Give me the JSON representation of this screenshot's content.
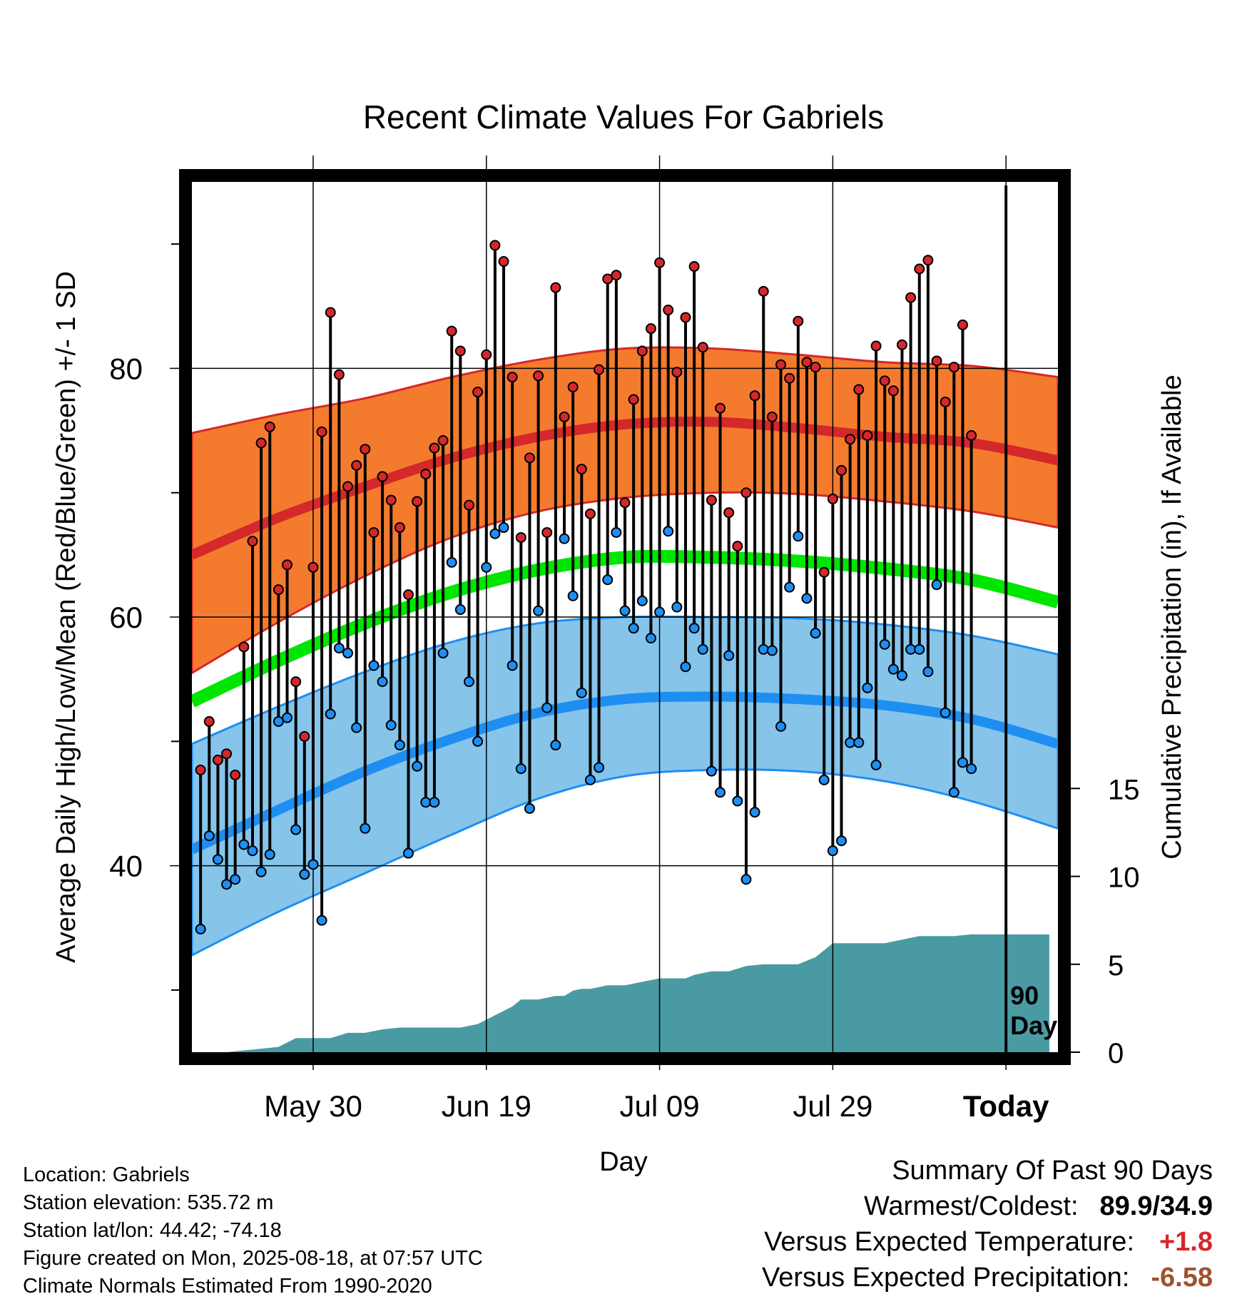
{
  "chart_data": {
    "type": "line",
    "title": "Recent Climate Values For Gabriels",
    "xlabel": "Day",
    "ylabel_left": "Average Daily High/Low/Mean (Red/Blue/Green) +/- 1 SD",
    "ylabel_right": "Cumulative Precipitation (in), If Available",
    "x_tick_labels": [
      "May 30",
      "Jun 19",
      "Jul 09",
      "Jul 29",
      "Today"
    ],
    "y_left_ticks": [
      40,
      60,
      80
    ],
    "y_right_ticks": [
      0,
      5,
      10,
      15
    ],
    "ylim_left": [
      25,
      95
    ],
    "ylim_right": [
      0,
      49.5
    ],
    "x_range_days": [
      -90,
      10
    ],
    "today_marker_label": [
      "90",
      "Days"
    ],
    "grid": true,
    "colors": {
      "high_band": "#f47b2e",
      "high_mean": "#d4282a",
      "low_band": "#86c4ea",
      "low_mean": "#1e8ef2",
      "mean": "#00e600",
      "precip": "#4a9aa3",
      "high_point": "#d4282a",
      "low_point": "#1e8ef2"
    },
    "normals": {
      "x": [
        -90,
        -80,
        -70,
        -60,
        -50,
        -40,
        -30,
        -20,
        -10,
        0,
        10
      ],
      "high_mean": [
        65.0,
        68.0,
        70.5,
        72.8,
        74.5,
        75.5,
        75.7,
        75.2,
        74.5,
        74.0,
        72.6
      ],
      "high_sd_upper": [
        74.8,
        76.3,
        77.6,
        79.3,
        80.7,
        81.6,
        81.6,
        81.1,
        80.5,
        80.2,
        79.3
      ],
      "high_sd_lower": [
        55.5,
        59.6,
        63.3,
        66.4,
        68.5,
        69.6,
        70.0,
        69.9,
        69.3,
        68.5,
        67.2
      ],
      "mean": [
        53.2,
        56.5,
        59.5,
        62.0,
        63.8,
        64.8,
        64.8,
        64.5,
        63.9,
        63.0,
        61.2
      ],
      "low_mean": [
        41.3,
        44.5,
        47.6,
        50.2,
        52.3,
        53.4,
        53.6,
        53.4,
        52.9,
        51.8,
        49.8
      ],
      "low_sd_upper": [
        49.8,
        52.8,
        55.6,
        58.0,
        59.5,
        60.0,
        60.0,
        59.9,
        59.4,
        58.5,
        57.0
      ],
      "low_sd_lower": [
        32.8,
        36.3,
        39.4,
        42.5,
        45.4,
        47.2,
        47.7,
        47.6,
        46.8,
        45.2,
        43.0
      ]
    },
    "daily_highs": [
      47.7,
      51.6,
      48.5,
      49.0,
      47.3,
      57.6,
      66.1,
      74.0,
      75.3,
      62.2,
      64.2,
      54.8,
      50.4,
      64.0,
      74.9,
      84.5,
      79.5,
      70.5,
      72.2,
      73.5,
      66.8,
      71.3,
      69.4,
      67.2,
      61.8,
      69.3,
      71.5,
      73.6,
      74.2,
      83.0,
      81.4,
      69.0,
      78.1,
      81.1,
      89.9,
      88.6,
      79.3,
      66.4,
      72.8,
      79.4,
      66.8,
      86.5,
      76.1,
      78.5,
      71.9,
      68.3,
      79.9,
      87.2,
      87.5,
      69.2,
      77.5,
      81.4,
      83.2,
      88.5,
      84.7,
      79.7,
      84.1,
      88.2,
      81.7,
      69.4,
      76.8,
      68.4,
      65.7,
      70.0,
      77.8,
      86.2,
      76.1,
      80.3,
      79.2,
      83.8,
      80.5,
      80.1,
      63.6,
      69.5,
      71.8,
      74.3,
      78.3,
      74.6,
      81.8,
      79.0,
      78.2,
      81.9,
      85.7,
      88.0,
      88.7,
      80.6,
      77.3,
      80.1,
      83.5,
      74.6
    ],
    "daily_lows": [
      34.9,
      42.4,
      40.5,
      38.5,
      38.9,
      41.7,
      41.2,
      39.5,
      40.9,
      51.6,
      51.9,
      42.9,
      39.3,
      40.1,
      35.6,
      52.2,
      57.5,
      57.1,
      51.1,
      43.0,
      56.1,
      54.8,
      51.3,
      49.7,
      41.0,
      48.0,
      45.1,
      45.1,
      57.1,
      64.4,
      60.6,
      54.8,
      50.0,
      64.0,
      66.7,
      67.2,
      56.1,
      47.8,
      44.6,
      60.5,
      52.7,
      49.7,
      66.3,
      61.7,
      53.9,
      46.9,
      47.9,
      63.0,
      66.8,
      60.5,
      59.1,
      61.3,
      58.3,
      60.4,
      66.9,
      60.8,
      56.0,
      59.1,
      57.4,
      47.6,
      45.9,
      56.9,
      45.2,
      38.9,
      44.3,
      57.4,
      57.3,
      51.2,
      62.4,
      66.5,
      61.5,
      58.7,
      46.9,
      41.2,
      42.0,
      49.9,
      49.9,
      54.3,
      48.1,
      57.8,
      55.8,
      55.3,
      57.4,
      57.4,
      55.6,
      62.6,
      52.3,
      45.9,
      48.3,
      47.8
    ],
    "precip_cumulative": {
      "x": [
        -90,
        -86,
        -84,
        -80,
        -78,
        -76,
        -74,
        -72,
        -70,
        -68,
        -66,
        -64,
        -62,
        -59,
        -57,
        -55,
        -53,
        -52,
        -51,
        -50,
        -48,
        -47,
        -46,
        -45,
        -44,
        -42,
        -40,
        -38,
        -36,
        -34,
        -33,
        -32,
        -30,
        -28,
        -26,
        -24,
        -23,
        -22,
        -20,
        -18,
        -16,
        -15,
        -14,
        -12,
        -10,
        -8,
        -6,
        -4,
        -3,
        -2,
        0,
        2,
        4,
        6,
        9
      ],
      "y": [
        0.0,
        0.0,
        0.1,
        0.3,
        0.8,
        0.8,
        0.8,
        1.1,
        1.1,
        1.3,
        1.4,
        1.4,
        1.4,
        1.4,
        1.6,
        2.1,
        2.6,
        3.0,
        3.0,
        3.0,
        3.2,
        3.2,
        3.5,
        3.6,
        3.6,
        3.8,
        3.8,
        4.0,
        4.2,
        4.2,
        4.2,
        4.4,
        4.6,
        4.6,
        4.9,
        5.0,
        5.0,
        5.0,
        5.0,
        5.4,
        6.2,
        6.2,
        6.2,
        6.2,
        6.2,
        6.4,
        6.6,
        6.6,
        6.6,
        6.6,
        6.7,
        6.7,
        6.7,
        6.7,
        6.7
      ]
    }
  },
  "info": {
    "location": "Location: Gabriels",
    "elevation": "Station elevation: 535.72 m",
    "latlon": "Station lat/lon: 44.42; -74.18",
    "created": "Figure created on Mon, 2025-08-18, at 07:57 UTC",
    "normals": "Climate Normals Estimated From 1990-2020"
  },
  "summary": {
    "title": "Summary Of Past 90 Days",
    "warmest_label": "Warmest/Coldest:",
    "warmest_value": "89.9/34.9",
    "temp_label": "Versus Expected Temperature:",
    "temp_value": "+1.8",
    "temp_color": "#d4282a",
    "precip_label": "Versus Expected Precipitation:",
    "precip_value": "-6.58",
    "precip_color": "#a0522d"
  }
}
